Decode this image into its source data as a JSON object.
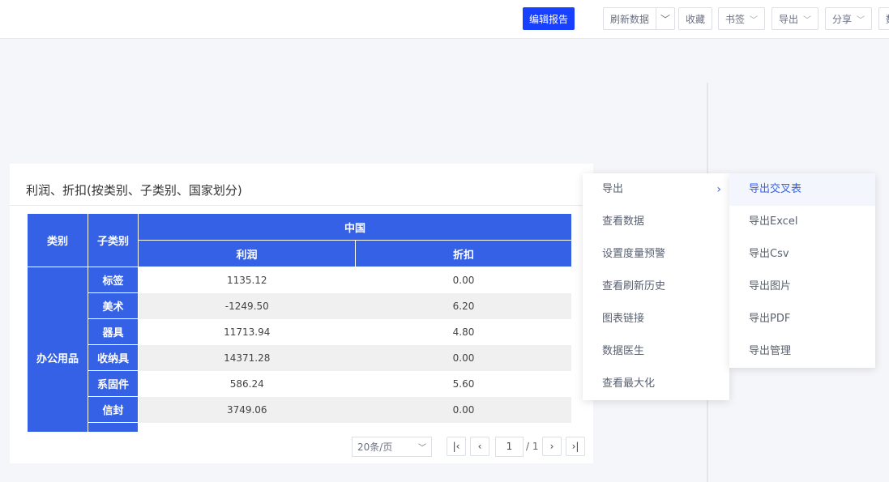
{
  "toolbar": {
    "edit_report": "编辑报告",
    "refresh": "刷新数据",
    "favorite": "收藏",
    "bookmark": "书签",
    "export": "导出",
    "share": "分享",
    "more_partial": "数"
  },
  "card": {
    "title": "利润、折扣(按类别、子类别、国家划分)"
  },
  "table": {
    "headers": {
      "category": "类别",
      "subcategory": "子类别",
      "country": "中国",
      "profit": "利润",
      "discount": "折扣"
    },
    "group": "办公用品",
    "rows": [
      {
        "sub": "标签",
        "profit": "1135.12",
        "discount": "0.00"
      },
      {
        "sub": "美术",
        "profit": "-1249.50",
        "discount": "6.20"
      },
      {
        "sub": "器具",
        "profit": "11713.94",
        "discount": "4.80"
      },
      {
        "sub": "收纳具",
        "profit": "14371.28",
        "discount": "0.00"
      },
      {
        "sub": "系固件",
        "profit": "586.24",
        "discount": "5.60"
      },
      {
        "sub": "信封",
        "profit": "3749.06",
        "discount": "0.00"
      }
    ]
  },
  "pager": {
    "page_size": "20条/页",
    "page": "1",
    "total": "/ 1"
  },
  "context_menu": {
    "items": [
      "导出",
      "查看数据",
      "设置度量预警",
      "查看刷新历史",
      "图表链接",
      "数据医生",
      "查看最大化"
    ]
  },
  "export_submenu": {
    "items": [
      "导出交叉表",
      "导出Excel",
      "导出Csv",
      "导出图片",
      "导出PDF",
      "导出管理"
    ]
  },
  "colors": {
    "primary": "#1741ff",
    "table_header": "#3561e6"
  }
}
